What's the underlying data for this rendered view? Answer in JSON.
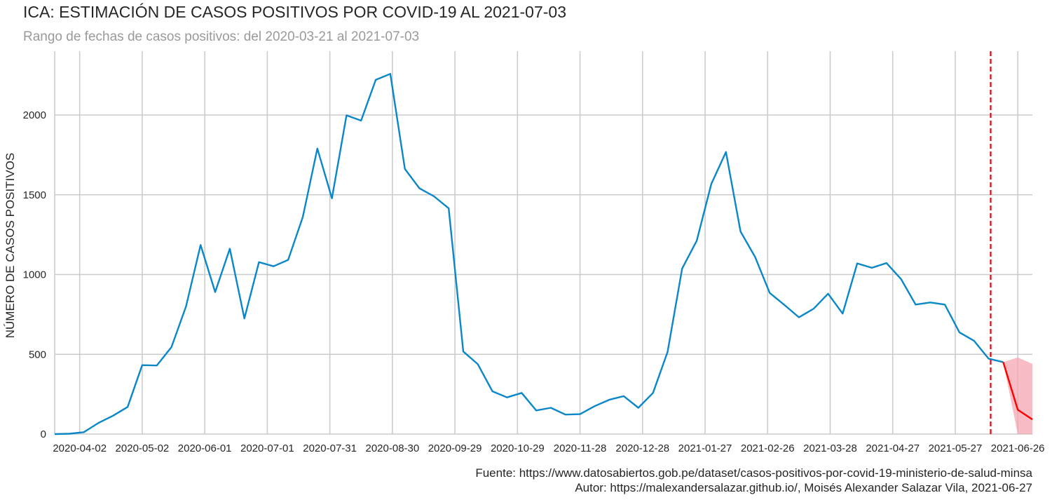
{
  "title": "ICA: ESTIMACIÓN DE CASOS POSITIVOS POR COVID-19 AL 2021-07-03",
  "subtitle": "Rango de fechas de casos positivos: del 2020-03-21 al 2021-07-03",
  "footer": {
    "source": "Fuente: https://www.datosabiertos.gob.pe/dataset/casos-positivos-por-covid-19-ministerio-de-salud-minsa",
    "author": "Autor: https://malexandersalazar.github.io/, Moisés Alexander Salazar Vila, 2021-06-27"
  },
  "colors": {
    "observed": "#0a87c8",
    "forecast": "#ff0000",
    "band": "#f4a6b0",
    "cutoff": "#e8000b",
    "grid": "#cccccc"
  },
  "chart_data": {
    "type": "line",
    "title": "ICA: ESTIMACIÓN DE CASOS POSITIVOS POR COVID-19 AL 2021-07-03",
    "subtitle": "Rango de fechas de casos positivos: del 2020-03-21 al 2021-07-03",
    "xlabel": "",
    "ylabel": "NÚMERO DE CASOS POSITIVOS",
    "xlim": [
      "2020-03-21",
      "2021-07-03"
    ],
    "ylim": [
      0,
      2400
    ],
    "grid": true,
    "x_ticks": [
      "2020-04-02",
      "2020-05-02",
      "2020-06-01",
      "2020-07-01",
      "2020-07-31",
      "2020-08-30",
      "2020-09-29",
      "2020-10-29",
      "2020-11-28",
      "2020-12-28",
      "2021-01-27",
      "2021-02-26",
      "2021-03-28",
      "2021-04-27",
      "2021-05-27",
      "2021-06-26"
    ],
    "y_ticks": [
      0,
      500,
      1000,
      1500,
      2000
    ],
    "cutoff_date": "2021-06-13",
    "series": [
      {
        "kind": "observed",
        "x": [
          "2020-03-21",
          "2020-03-28",
          "2020-04-04",
          "2020-04-11",
          "2020-04-18",
          "2020-04-25",
          "2020-05-02",
          "2020-05-09",
          "2020-05-16",
          "2020-05-23",
          "2020-05-30",
          "2020-06-06",
          "2020-06-13",
          "2020-06-20",
          "2020-06-27",
          "2020-07-04",
          "2020-07-11",
          "2020-07-18",
          "2020-07-25",
          "2020-08-01",
          "2020-08-08",
          "2020-08-15",
          "2020-08-22",
          "2020-08-29",
          "2020-09-05",
          "2020-09-12",
          "2020-09-19",
          "2020-09-26",
          "2020-10-03",
          "2020-10-10",
          "2020-10-17",
          "2020-10-24",
          "2020-10-31",
          "2020-11-07",
          "2020-11-14",
          "2020-11-21",
          "2020-11-28",
          "2020-12-05",
          "2020-12-12",
          "2020-12-19",
          "2020-12-26",
          "2021-01-02",
          "2021-01-09",
          "2021-01-16",
          "2021-01-23",
          "2021-01-30",
          "2021-02-06",
          "2021-02-13",
          "2021-02-20",
          "2021-02-27",
          "2021-03-06",
          "2021-03-13",
          "2021-03-20",
          "2021-03-27",
          "2021-04-03",
          "2021-04-10",
          "2021-04-17",
          "2021-04-24",
          "2021-05-01",
          "2021-05-08",
          "2021-05-15",
          "2021-05-22",
          "2021-05-29",
          "2021-06-05",
          "2021-06-12",
          "2021-06-19"
        ],
        "y": [
          0,
          2,
          12,
          70,
          115,
          170,
          432,
          430,
          545,
          800,
          1185,
          890,
          1162,
          725,
          1078,
          1052,
          1092,
          1360,
          1790,
          1478,
          1998,
          1965,
          2220,
          2258,
          1662,
          1540,
          1490,
          1415,
          518,
          438,
          268,
          230,
          258,
          148,
          165,
          122,
          125,
          175,
          215,
          238,
          165,
          258,
          515,
          1038,
          1212,
          1568,
          1768,
          1270,
          1110,
          885,
          810,
          732,
          785,
          880,
          755,
          1070,
          1042,
          1072,
          972,
          812,
          825,
          812,
          638,
          585,
          473,
          451
        ]
      },
      {
        "kind": "forecast",
        "x": [
          "2021-06-19",
          "2021-06-26",
          "2021-07-03"
        ],
        "y": [
          451,
          152,
          92
        ],
        "lower": [
          451,
          0,
          0
        ],
        "upper": [
          451,
          480,
          440
        ]
      }
    ]
  }
}
